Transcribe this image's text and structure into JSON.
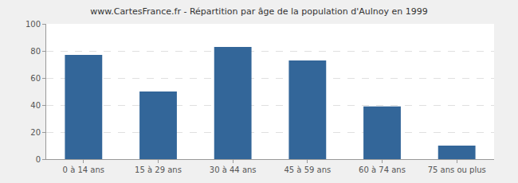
{
  "chart_data": {
    "type": "bar",
    "title": "www.CartesFrance.fr - Répartition par âge de la population d'Aulnoy en 1999",
    "categories": [
      "0 à 14 ans",
      "15 à 29 ans",
      "30 à 44 ans",
      "45 à 59 ans",
      "60 à 74 ans",
      "75 ans ou plus"
    ],
    "values": [
      77,
      50,
      83,
      73,
      39,
      10
    ],
    "color": "#336699",
    "ylim": [
      0,
      100
    ],
    "yticks": [
      0,
      20,
      40,
      60,
      80,
      100
    ],
    "grid": true
  }
}
